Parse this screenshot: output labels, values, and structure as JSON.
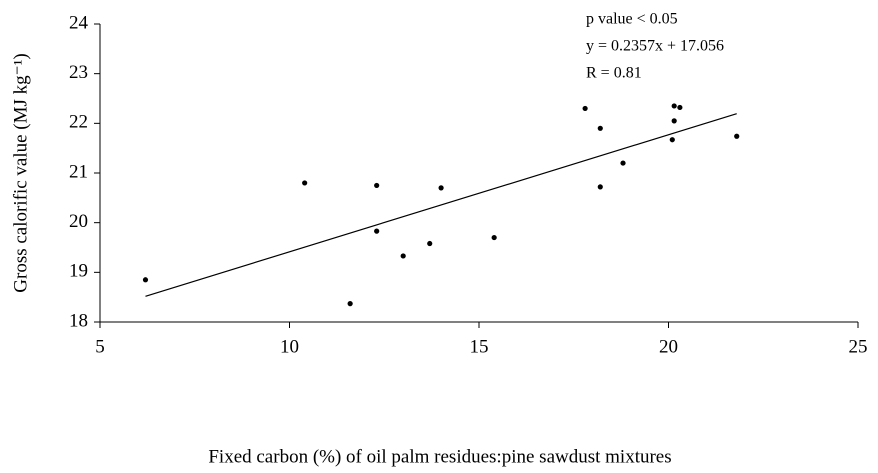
{
  "chart_data": {
    "type": "scatter",
    "xlabel": "Fixed carbon (%) of oil palm residues:pine sawdust mixtures",
    "ylabel": "Gross calorific value (MJ kg⁻¹)",
    "annotations": [
      "p value < 0.05",
      "y = 0.2357x + 17.056",
      "R = 0.81"
    ],
    "trendline": {
      "slope": 0.2357,
      "intercept": 17.056
    },
    "color": "#000000",
    "x": [
      6.2,
      10.4,
      11.6,
      12.3,
      12.3,
      13.0,
      13.7,
      14.0,
      15.4,
      17.8,
      18.2,
      18.2,
      18.8,
      20.1,
      20.15,
      20.15,
      20.3,
      21.8
    ],
    "y": [
      18.85,
      20.8,
      18.37,
      20.75,
      19.83,
      19.33,
      19.58,
      20.7,
      19.7,
      22.3,
      21.9,
      20.72,
      21.2,
      21.67,
      22.05,
      22.35,
      22.32,
      21.74
    ],
    "xlim": [
      5,
      25
    ],
    "xticks": [
      5,
      10,
      15,
      20,
      25
    ],
    "ylim": [
      18,
      24
    ],
    "yticks": [
      18,
      19,
      20,
      21,
      22,
      23,
      24
    ]
  }
}
